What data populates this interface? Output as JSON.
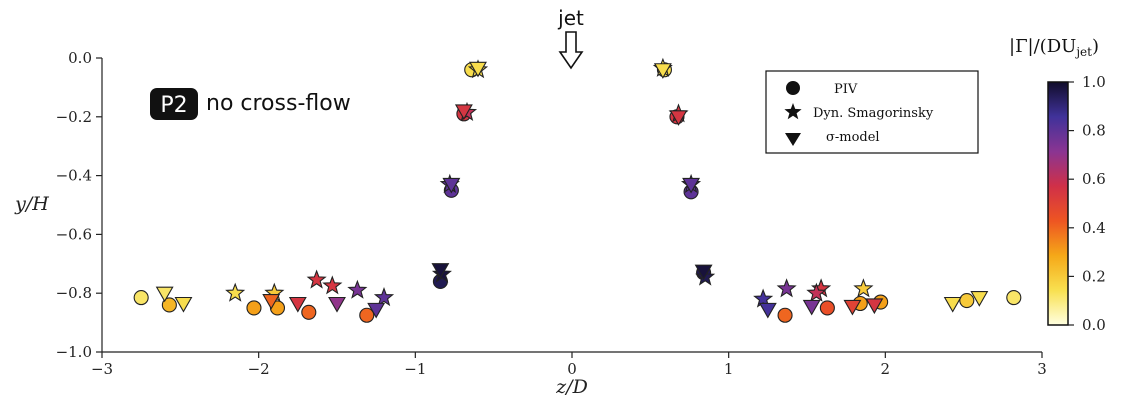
{
  "chart_data": {
    "type": "scatter",
    "xlabel": "z/D",
    "ylabel": "y/H",
    "xlim": [
      -3,
      3
    ],
    "ylim": [
      -1.0,
      0.0
    ],
    "xticks": [
      "−3",
      "−2",
      "−1",
      "0",
      "1",
      "2",
      "3"
    ],
    "yticks": [
      "0.0",
      "−0.2",
      "−0.4",
      "−0.6",
      "−0.8",
      "−1.0"
    ],
    "grid": false,
    "jet_annotation": "jet",
    "badge": "P2",
    "annotation": "no cross-flow",
    "legend_position": "top-right",
    "legend": [
      "PIV",
      "Dyn. Smagorinsky",
      "σ-model"
    ],
    "colorbar": {
      "label_main": "|Γ|/(DU",
      "label_sub": "jet",
      "label_close": ")",
      "ticks": [
        "0.0",
        "0.2",
        "0.4",
        "0.6",
        "0.8",
        "1.0"
      ],
      "range": [
        0,
        1
      ],
      "colors": [
        "#ffffe0",
        "#f8e050",
        "#f5a818",
        "#ee5522",
        "#d03048",
        "#8a3592",
        "#40329a",
        "#110d2b"
      ]
    },
    "series": [
      {
        "name": "PIV",
        "marker": "circle",
        "points": [
          {
            "x": -0.64,
            "y": -0.04,
            "c": 0.15
          },
          {
            "x": -0.69,
            "y": -0.19,
            "c": 0.55
          },
          {
            "x": -0.77,
            "y": -0.45,
            "c": 0.8
          },
          {
            "x": -0.84,
            "y": -0.76,
            "c": 0.95
          },
          {
            "x": -2.75,
            "y": -0.815,
            "c": 0.12
          },
          {
            "x": -2.57,
            "y": -0.84,
            "c": 0.25
          },
          {
            "x": -2.03,
            "y": -0.85,
            "c": 0.3
          },
          {
            "x": -1.88,
            "y": -0.85,
            "c": 0.3
          },
          {
            "x": -1.68,
            "y": -0.865,
            "c": 0.4
          },
          {
            "x": -1.31,
            "y": -0.875,
            "c": 0.4
          },
          {
            "x": 0.59,
            "y": -0.04,
            "c": 0.15
          },
          {
            "x": 0.67,
            "y": -0.2,
            "c": 0.55
          },
          {
            "x": 0.76,
            "y": -0.455,
            "c": 0.8
          },
          {
            "x": 0.84,
            "y": -0.73,
            "c": 0.95
          },
          {
            "x": 1.36,
            "y": -0.875,
            "c": 0.4
          },
          {
            "x": 1.63,
            "y": -0.85,
            "c": 0.45
          },
          {
            "x": 1.84,
            "y": -0.835,
            "c": 0.3
          },
          {
            "x": 1.97,
            "y": -0.83,
            "c": 0.3
          },
          {
            "x": 2.52,
            "y": -0.825,
            "c": 0.2
          },
          {
            "x": 2.82,
            "y": -0.815,
            "c": 0.12
          }
        ]
      },
      {
        "name": "Dyn. Smagorinsky",
        "marker": "star",
        "points": [
          {
            "x": -0.6,
            "y": -0.04,
            "c": 0.15
          },
          {
            "x": -0.67,
            "y": -0.185,
            "c": 0.6
          },
          {
            "x": -0.78,
            "y": -0.43,
            "c": 0.8
          },
          {
            "x": -0.83,
            "y": -0.735,
            "c": 0.98
          },
          {
            "x": -2.15,
            "y": -0.8,
            "c": 0.15
          },
          {
            "x": -1.9,
            "y": -0.8,
            "c": 0.2
          },
          {
            "x": -1.63,
            "y": -0.755,
            "c": 0.55
          },
          {
            "x": -1.53,
            "y": -0.775,
            "c": 0.55
          },
          {
            "x": -1.37,
            "y": -0.79,
            "c": 0.75
          },
          {
            "x": -1.2,
            "y": -0.815,
            "c": 0.8
          },
          {
            "x": 0.58,
            "y": -0.035,
            "c": 0.15
          },
          {
            "x": 0.68,
            "y": -0.19,
            "c": 0.55
          },
          {
            "x": 0.76,
            "y": -0.43,
            "c": 0.8
          },
          {
            "x": 0.85,
            "y": -0.745,
            "c": 0.95
          },
          {
            "x": 1.22,
            "y": -0.82,
            "c": 0.85
          },
          {
            "x": 1.37,
            "y": -0.785,
            "c": 0.75
          },
          {
            "x": 1.59,
            "y": -0.785,
            "c": 0.55
          },
          {
            "x": 1.56,
            "y": -0.8,
            "c": 0.6
          },
          {
            "x": 1.86,
            "y": -0.785,
            "c": 0.2
          }
        ]
      },
      {
        "name": "σ-model",
        "marker": "triangle",
        "points": [
          {
            "x": -0.6,
            "y": -0.035,
            "c": 0.15
          },
          {
            "x": -0.69,
            "y": -0.18,
            "c": 0.55
          },
          {
            "x": -0.77,
            "y": -0.43,
            "c": 0.8
          },
          {
            "x": -0.84,
            "y": -0.72,
            "c": 0.98
          },
          {
            "x": -2.6,
            "y": -0.8,
            "c": 0.12
          },
          {
            "x": -2.48,
            "y": -0.835,
            "c": 0.15
          },
          {
            "x": -1.92,
            "y": -0.825,
            "c": 0.4
          },
          {
            "x": -1.75,
            "y": -0.835,
            "c": 0.55
          },
          {
            "x": -1.5,
            "y": -0.835,
            "c": 0.7
          },
          {
            "x": -1.25,
            "y": -0.855,
            "c": 0.8
          },
          {
            "x": 0.58,
            "y": -0.04,
            "c": 0.15
          },
          {
            "x": 0.68,
            "y": -0.2,
            "c": 0.55
          },
          {
            "x": 0.76,
            "y": -0.43,
            "c": 0.8
          },
          {
            "x": 0.84,
            "y": -0.725,
            "c": 0.98
          },
          {
            "x": 1.25,
            "y": -0.855,
            "c": 0.85
          },
          {
            "x": 1.53,
            "y": -0.845,
            "c": 0.75
          },
          {
            "x": 1.79,
            "y": -0.845,
            "c": 0.5
          },
          {
            "x": 1.93,
            "y": -0.84,
            "c": 0.55
          },
          {
            "x": 2.43,
            "y": -0.835,
            "c": 0.15
          },
          {
            "x": 2.6,
            "y": -0.815,
            "c": 0.15
          }
        ]
      }
    ]
  }
}
